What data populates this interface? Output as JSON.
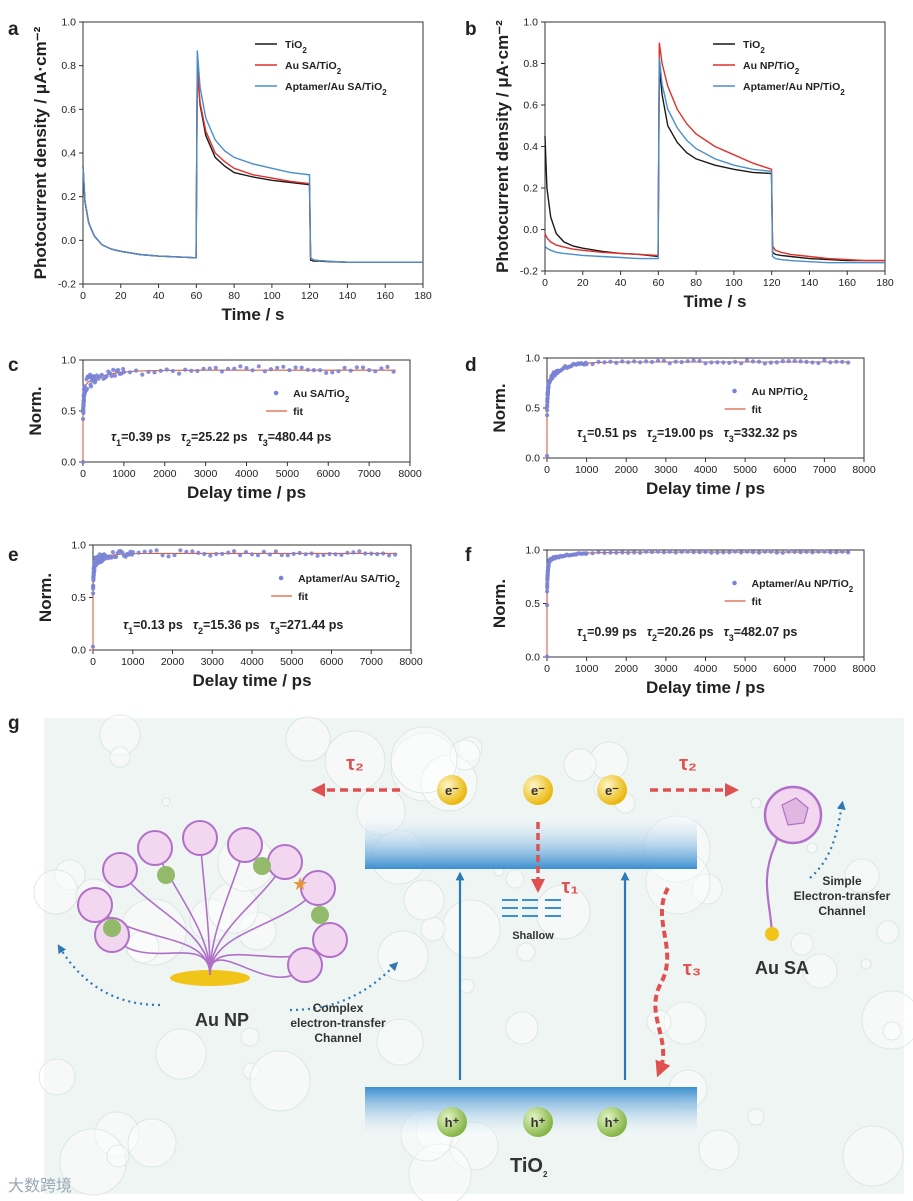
{
  "chart_data": [
    {
      "panel": "a",
      "type": "line",
      "xlabel": "Time / s",
      "ylabel": "Photocurrent density / μA·cm⁻²",
      "xlim": [
        0,
        180
      ],
      "ylim": [
        -0.2,
        1.0
      ],
      "xticks": [
        "0",
        "20",
        "40",
        "60",
        "80",
        "100",
        "120",
        "140",
        "160",
        "180"
      ],
      "yticks": [
        "-0.2",
        "0.0",
        "0.2",
        "0.4",
        "0.6",
        "0.8",
        "1.0"
      ],
      "legend": "top-right",
      "series": [
        {
          "name": "TiO2",
          "color": "#1a1a1a",
          "x": [
            0,
            1,
            3,
            6,
            10,
            15,
            20,
            30,
            40,
            50,
            59.9,
            60.5,
            62,
            65,
            70,
            75,
            80,
            90,
            100,
            110,
            119.9,
            120.5,
            122,
            125,
            130,
            140,
            150,
            160,
            170,
            180
          ],
          "y": [
            0.34,
            0.18,
            0.08,
            0.02,
            -0.02,
            -0.04,
            -0.05,
            -0.065,
            -0.072,
            -0.076,
            -0.08,
            0.79,
            0.62,
            0.48,
            0.38,
            0.34,
            0.31,
            0.29,
            0.275,
            0.265,
            0.255,
            -0.09,
            -0.095,
            -0.095,
            -0.098,
            -0.1,
            -0.1,
            -0.1,
            -0.1,
            -0.1
          ]
        },
        {
          "name": "Au SA/TiO2",
          "color": "#e0302b",
          "x": [
            0,
            1,
            3,
            6,
            10,
            15,
            20,
            30,
            40,
            50,
            59.9,
            60.5,
            62,
            65,
            70,
            75,
            80,
            90,
            100,
            110,
            119.9,
            120.5,
            122,
            125,
            130,
            140,
            150,
            160,
            170,
            180
          ],
          "y": [
            0.34,
            0.18,
            0.08,
            0.02,
            -0.02,
            -0.04,
            -0.05,
            -0.065,
            -0.072,
            -0.076,
            -0.08,
            0.78,
            0.63,
            0.5,
            0.4,
            0.36,
            0.33,
            0.3,
            0.285,
            0.27,
            0.26,
            -0.08,
            -0.09,
            -0.093,
            -0.096,
            -0.1,
            -0.1,
            -0.1,
            -0.1,
            -0.1
          ]
        },
        {
          "name": "Aptamer/Au SA/TiO2",
          "color": "#4a8ec9",
          "x": [
            0,
            1,
            3,
            6,
            10,
            15,
            20,
            30,
            40,
            50,
            59.9,
            60.5,
            62,
            65,
            70,
            75,
            80,
            90,
            100,
            110,
            119.9,
            120.5,
            122,
            125,
            130,
            140,
            150,
            160,
            170,
            180
          ],
          "y": [
            0.34,
            0.18,
            0.08,
            0.02,
            -0.02,
            -0.04,
            -0.05,
            -0.065,
            -0.072,
            -0.076,
            -0.08,
            0.87,
            0.7,
            0.56,
            0.46,
            0.41,
            0.38,
            0.35,
            0.33,
            0.31,
            0.3,
            -0.08,
            -0.09,
            -0.093,
            -0.096,
            -0.1,
            -0.1,
            -0.1,
            -0.1,
            -0.1
          ]
        }
      ]
    },
    {
      "panel": "b",
      "type": "line",
      "xlabel": "Time / s",
      "ylabel": "Photocurrent density / μA·cm⁻²",
      "xlim": [
        0,
        180
      ],
      "ylim": [
        -0.2,
        1.0
      ],
      "xticks": [
        "0",
        "20",
        "40",
        "60",
        "80",
        "100",
        "120",
        "140",
        "160",
        "180"
      ],
      "yticks": [
        "-0.2",
        "0.0",
        "0.2",
        "0.4",
        "0.6",
        "0.8",
        "1.0"
      ],
      "legend": "top-right",
      "series": [
        {
          "name": "TiO2",
          "color": "#1a1a1a",
          "x": [
            0,
            1,
            3,
            6,
            10,
            15,
            20,
            30,
            40,
            50,
            59.9,
            60.5,
            62,
            65,
            70,
            75,
            80,
            90,
            100,
            110,
            119.9,
            120.5,
            122,
            125,
            130,
            140,
            150,
            160,
            170,
            180
          ],
          "y": [
            0.45,
            0.2,
            0.06,
            -0.02,
            -0.06,
            -0.08,
            -0.09,
            -0.105,
            -0.115,
            -0.12,
            -0.13,
            0.78,
            0.65,
            0.5,
            0.42,
            0.37,
            0.34,
            0.31,
            0.29,
            0.275,
            0.27,
            -0.11,
            -0.12,
            -0.125,
            -0.13,
            -0.14,
            -0.145,
            -0.15,
            -0.15,
            -0.15
          ]
        },
        {
          "name": "Au NP/TiO2",
          "color": "#e0302b",
          "x": [
            0,
            1,
            3,
            6,
            10,
            15,
            20,
            30,
            40,
            50,
            59.9,
            60.5,
            62,
            65,
            70,
            75,
            80,
            90,
            100,
            110,
            119.9,
            120.5,
            122,
            125,
            130,
            140,
            150,
            160,
            170,
            180
          ],
          "y": [
            -0.02,
            -0.04,
            -0.06,
            -0.075,
            -0.085,
            -0.095,
            -0.1,
            -0.11,
            -0.115,
            -0.12,
            -0.125,
            0.9,
            0.8,
            0.69,
            0.58,
            0.51,
            0.46,
            0.4,
            0.36,
            0.32,
            0.29,
            -0.08,
            -0.1,
            -0.11,
            -0.12,
            -0.13,
            -0.14,
            -0.145,
            -0.15,
            -0.15
          ]
        },
        {
          "name": "Aptamer/Au NP/TiO2",
          "color": "#4a8ec9",
          "x": [
            0,
            1,
            3,
            6,
            10,
            15,
            20,
            30,
            40,
            50,
            59.9,
            60.5,
            62,
            65,
            70,
            75,
            80,
            90,
            100,
            110,
            119.9,
            120.5,
            122,
            125,
            130,
            140,
            150,
            160,
            170,
            180
          ],
          "y": [
            -0.08,
            -0.09,
            -0.1,
            -0.11,
            -0.115,
            -0.12,
            -0.125,
            -0.13,
            -0.135,
            -0.14,
            -0.14,
            0.83,
            0.7,
            0.58,
            0.49,
            0.43,
            0.39,
            0.34,
            0.31,
            0.29,
            0.28,
            -0.13,
            -0.14,
            -0.145,
            -0.15,
            -0.155,
            -0.16,
            -0.16,
            -0.16,
            -0.16
          ]
        }
      ]
    },
    {
      "panel": "c",
      "type": "scatter",
      "xlabel": "Delay time / ps",
      "ylabel": "Norm.",
      "xlim": [
        0,
        8000
      ],
      "ylim": [
        0,
        1.0
      ],
      "xticks": [
        "0",
        "1000",
        "2000",
        "3000",
        "4000",
        "5000",
        "6000",
        "7000",
        "8000"
      ],
      "yticks": [
        "0.0",
        "0.5",
        "1.0"
      ],
      "legend": "right",
      "points_label": "Au SA/TiO2",
      "fit_label": "fit",
      "fit": {
        "plateau": 0.9,
        "amps": [
          0.45,
          0.3,
          0.15
        ],
        "taus": [
          0.39,
          25.22,
          480.44
        ]
      },
      "noise": 0.04,
      "tau_text": {
        "t1": "=0.39 ps",
        "t2": "=25.22 ps",
        "t3": "=480.44 ps"
      }
    },
    {
      "panel": "d",
      "type": "scatter",
      "xlabel": "Delay time / ps",
      "ylabel": "Norm.",
      "xlim": [
        0,
        8000
      ],
      "ylim": [
        0,
        1.0
      ],
      "xticks": [
        "0",
        "1000",
        "2000",
        "3000",
        "4000",
        "5000",
        "6000",
        "7000",
        "8000"
      ],
      "yticks": [
        "0.0",
        "0.5",
        "1.0"
      ],
      "legend": "right",
      "points_label": "Au NP/TiO2",
      "fit_label": "fit",
      "fit": {
        "plateau": 0.96,
        "amps": [
          0.45,
          0.3,
          0.21
        ],
        "taus": [
          0.51,
          19.0,
          332.32
        ]
      },
      "noise": 0.015,
      "tau_text": {
        "t1": "=0.51 ps",
        "t2": "=19.00 ps",
        "t3": "=332.32 ps"
      }
    },
    {
      "panel": "e",
      "type": "scatter",
      "xlabel": "Delay time / ps",
      "ylabel": "Norm.",
      "xlim": [
        0,
        8000
      ],
      "ylim": [
        0,
        1.0
      ],
      "xticks": [
        "0",
        "1000",
        "2000",
        "3000",
        "4000",
        "5000",
        "6000",
        "7000",
        "8000"
      ],
      "yticks": [
        "0.0",
        "0.5",
        "1.0"
      ],
      "legend": "right",
      "points_label": "Aptamer/Au SA/TiO2",
      "fit_label": "fit",
      "fit": {
        "plateau": 0.92,
        "amps": [
          0.55,
          0.27,
          0.1
        ],
        "taus": [
          0.13,
          15.36,
          271.44
        ]
      },
      "noise": 0.03,
      "tau_text": {
        "t1": "=0.13 ps",
        "t2": "=15.36 ps",
        "t3": "=271.44 ps"
      }
    },
    {
      "panel": "f",
      "type": "scatter",
      "xlabel": "Delay time / ps",
      "ylabel": "Norm.",
      "xlim": [
        0,
        8000
      ],
      "ylim": [
        0,
        1.0
      ],
      "xticks": [
        "0",
        "1000",
        "2000",
        "3000",
        "4000",
        "5000",
        "6000",
        "7000",
        "8000"
      ],
      "yticks": [
        "0.0",
        "0.5",
        "1.0"
      ],
      "legend": "right",
      "points_label": "Aptamer/Au NP/TiO2",
      "fit_label": "fit",
      "fit": {
        "plateau": 0.98,
        "amps": [
          0.6,
          0.3,
          0.08
        ],
        "taus": [
          0.99,
          20.26,
          482.07
        ]
      },
      "noise": 0.006,
      "tau_text": {
        "t1": "=0.99 ps",
        "t2": "=20.26 ps",
        "t3": "=482.07 ps"
      }
    }
  ],
  "schematic": {
    "panel": "g",
    "electron": "e⁻",
    "hole": "h⁺",
    "tau1": "τ₁",
    "tau2": "τ₂",
    "tau3": "τ₃",
    "shallow": "Shallow",
    "tio2": "TiO₂",
    "au_np": "Au NP",
    "au_sa": "Au SA",
    "complex_channel": [
      "Complex",
      "electron-transfer",
      "Channel"
    ],
    "simple_channel": [
      "Simple",
      "Electron-transfer",
      "Channel"
    ],
    "colors": {
      "arrow_red": "#e05050",
      "arrow_blue": "#2e78b5",
      "dna": "#b070c8",
      "gold": "#f0c419",
      "band_blue": "#3b8fd0"
    }
  },
  "watermark": "大数跨境"
}
